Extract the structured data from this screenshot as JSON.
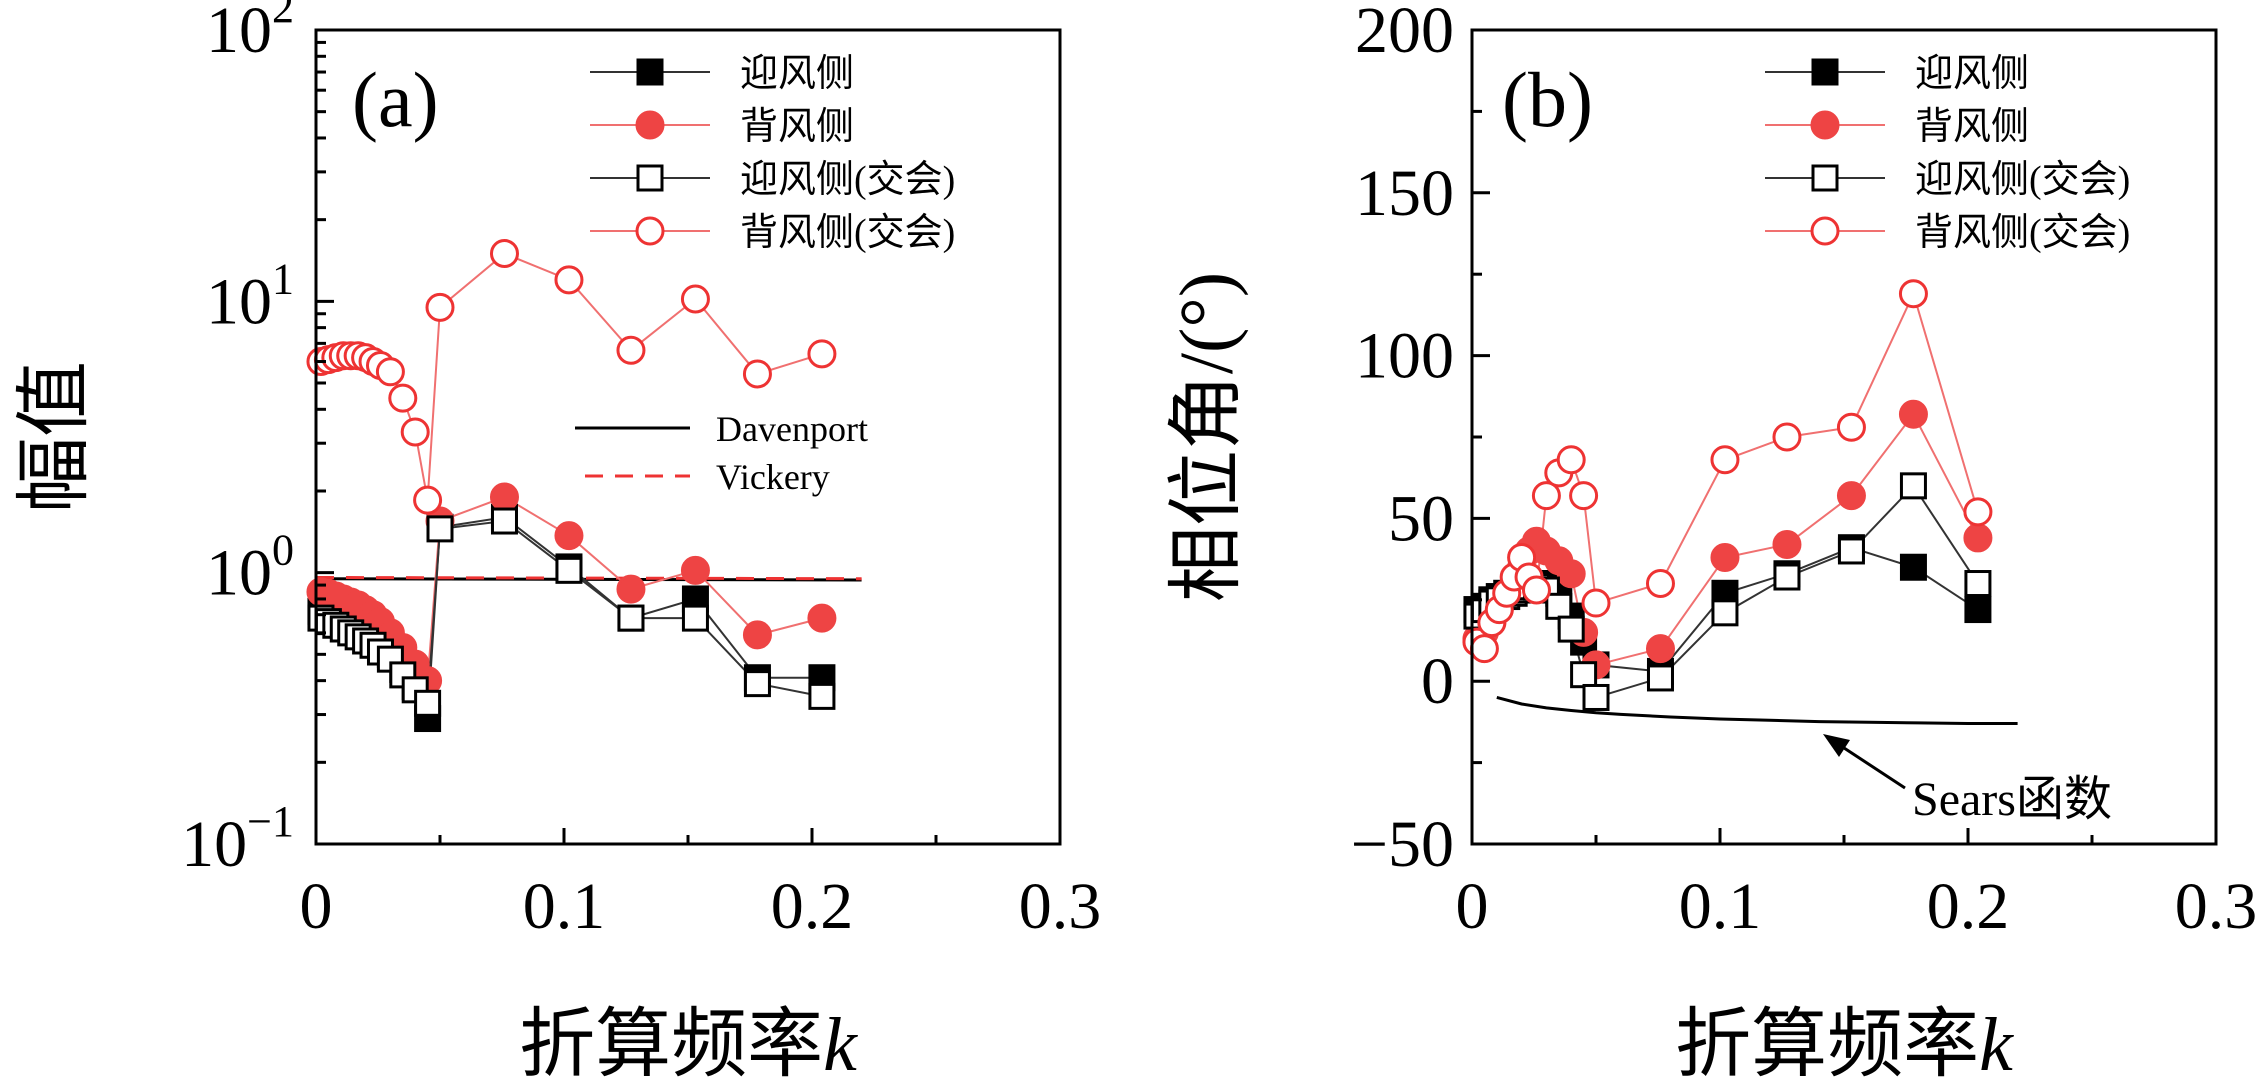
{
  "chart_data": [
    {
      "panel_label": "(a)",
      "type": "scatter",
      "xscale": "linear",
      "yscale": "log",
      "xlim": [
        0,
        0.3
      ],
      "ylim": [
        0.1,
        100
      ],
      "xlabel_main": "折算频率",
      "xlabel_var": "k",
      "ylabel": "幅值",
      "xticks": [
        "0",
        "0.1",
        "0.2",
        "0.3"
      ],
      "xtick_values": [
        0,
        0.1,
        0.2,
        0.3
      ],
      "yticks": [
        {
          "value": 0.1,
          "base": "10",
          "exp": "−1"
        },
        {
          "value": 1,
          "base": "10",
          "exp": "0"
        },
        {
          "value": 10,
          "base": "10",
          "exp": "1"
        },
        {
          "value": 100,
          "base": "10",
          "exp": "2"
        }
      ],
      "legend_position": "top-right",
      "series": [
        {
          "name": "迎风侧",
          "style": "black-filled-square",
          "x": [
            0.002,
            0.005,
            0.008,
            0.011,
            0.014,
            0.017,
            0.02,
            0.023,
            0.026,
            0.03,
            0.035,
            0.04,
            0.045,
            0.05,
            0.076,
            0.102,
            0.127,
            0.153,
            0.178,
            0.204
          ],
          "y": [
            0.72,
            0.7,
            0.67,
            0.65,
            0.63,
            0.61,
            0.59,
            0.57,
            0.54,
            0.5,
            0.44,
            0.38,
            0.29,
            1.47,
            1.6,
            1.05,
            0.68,
            0.8,
            0.41,
            0.41
          ]
        },
        {
          "name": "背风侧",
          "style": "red-filled-circle",
          "x": [
            0.002,
            0.005,
            0.008,
            0.011,
            0.014,
            0.017,
            0.02,
            0.023,
            0.026,
            0.03,
            0.035,
            0.04,
            0.045,
            0.05,
            0.076,
            0.102,
            0.127,
            0.153,
            0.178,
            0.204
          ],
          "y": [
            0.85,
            0.84,
            0.82,
            0.8,
            0.78,
            0.76,
            0.73,
            0.7,
            0.66,
            0.6,
            0.53,
            0.46,
            0.4,
            1.55,
            1.9,
            1.37,
            0.87,
            1.02,
            0.59,
            0.68
          ]
        },
        {
          "name": "迎风侧(交会)",
          "style": "black-open-square",
          "x": [
            0.002,
            0.005,
            0.008,
            0.011,
            0.014,
            0.017,
            0.02,
            0.023,
            0.026,
            0.03,
            0.035,
            0.04,
            0.045,
            0.05,
            0.076,
            0.102,
            0.127,
            0.153,
            0.178,
            0.204
          ],
          "y": [
            0.68,
            0.66,
            0.64,
            0.62,
            0.6,
            0.58,
            0.56,
            0.54,
            0.51,
            0.48,
            0.42,
            0.37,
            0.33,
            1.45,
            1.55,
            1.02,
            0.68,
            0.68,
            0.39,
            0.35
          ]
        },
        {
          "name": "背风侧(交会)",
          "style": "red-open-circle",
          "x": [
            0.002,
            0.005,
            0.008,
            0.011,
            0.014,
            0.017,
            0.02,
            0.023,
            0.026,
            0.03,
            0.035,
            0.04,
            0.045,
            0.05,
            0.076,
            0.102,
            0.127,
            0.153,
            0.178,
            0.204
          ],
          "y": [
            6.0,
            6.1,
            6.2,
            6.3,
            6.3,
            6.3,
            6.2,
            6.0,
            5.8,
            5.5,
            4.4,
            3.3,
            1.85,
            9.5,
            15.0,
            12.0,
            6.6,
            10.2,
            5.4,
            6.4
          ]
        }
      ],
      "reference_lines": [
        {
          "name": "Davenport",
          "style": "black-solid",
          "x": [
            0,
            0.22
          ],
          "y": [
            0.95,
            0.94
          ]
        },
        {
          "name": "Vickery",
          "style": "red-dashed",
          "x": [
            0,
            0.22
          ],
          "y": [
            0.96,
            0.95
          ]
        }
      ]
    },
    {
      "panel_label": "(b)",
      "type": "scatter",
      "xscale": "linear",
      "yscale": "linear",
      "xlim": [
        0,
        0.3
      ],
      "ylim": [
        -50,
        200
      ],
      "xlabel_main": "折算频率",
      "xlabel_var": "k",
      "ylabel": "相位角/(°)",
      "xticks": [
        "0",
        "0.1",
        "0.2",
        "0.3"
      ],
      "xtick_values": [
        0,
        0.1,
        0.2,
        0.3
      ],
      "yticks": [
        "−50",
        "0",
        "50",
        "100",
        "150",
        "200"
      ],
      "ytick_values": [
        -50,
        0,
        50,
        100,
        150,
        200
      ],
      "legend_position": "top-right",
      "annotation": "Sears函数",
      "series": [
        {
          "name": "迎风侧",
          "style": "black-filled-square",
          "x": [
            0.002,
            0.005,
            0.008,
            0.011,
            0.014,
            0.017,
            0.02,
            0.023,
            0.026,
            0.03,
            0.035,
            0.04,
            0.045,
            0.05,
            0.076,
            0.102,
            0.127,
            0.153,
            0.178,
            0.204
          ],
          "y": [
            22,
            23,
            25,
            26,
            27,
            28,
            28,
            29,
            30,
            30,
            27,
            20,
            12,
            5,
            3,
            27,
            33,
            41,
            35,
            22
          ]
        },
        {
          "name": "背风侧",
          "style": "red-filled-circle",
          "x": [
            0.002,
            0.005,
            0.008,
            0.011,
            0.014,
            0.017,
            0.02,
            0.023,
            0.026,
            0.03,
            0.035,
            0.04,
            0.045,
            0.05,
            0.076,
            0.102,
            0.127,
            0.153,
            0.178,
            0.204
          ],
          "y": [
            13,
            15,
            18,
            22,
            26,
            30,
            35,
            40,
            43,
            40,
            37,
            33,
            15,
            5,
            10,
            38,
            42,
            57,
            82,
            44
          ]
        },
        {
          "name": "迎风侧(交会)",
          "style": "black-open-square",
          "x": [
            0.002,
            0.005,
            0.008,
            0.011,
            0.014,
            0.017,
            0.02,
            0.023,
            0.026,
            0.03,
            0.035,
            0.04,
            0.045,
            0.05,
            0.076,
            0.102,
            0.127,
            0.153,
            0.178,
            0.204
          ],
          "y": [
            20,
            22,
            24,
            25,
            26,
            27,
            28,
            29,
            29,
            28,
            23,
            16,
            2,
            -5,
            1,
            21,
            32,
            40,
            60,
            30
          ]
        },
        {
          "name": "背风侧(交会)",
          "style": "red-open-circle",
          "x": [
            0.002,
            0.005,
            0.008,
            0.011,
            0.014,
            0.017,
            0.02,
            0.023,
            0.026,
            0.03,
            0.035,
            0.04,
            0.045,
            0.05,
            0.076,
            0.102,
            0.127,
            0.153,
            0.178,
            0.204
          ],
          "y": [
            12,
            10,
            18,
            22,
            27,
            32,
            38,
            32,
            28,
            57,
            64,
            68,
            57,
            24,
            30,
            68,
            75,
            78,
            119,
            52
          ]
        }
      ],
      "reference_lines": [
        {
          "name": "Sears函数",
          "style": "black-solid",
          "x": [
            0.01,
            0.02,
            0.03,
            0.04,
            0.05,
            0.06,
            0.08,
            0.1,
            0.12,
            0.14,
            0.16,
            0.18,
            0.2,
            0.22
          ],
          "y": [
            -5,
            -7,
            -8.2,
            -9,
            -9.7,
            -10.2,
            -11,
            -11.6,
            -12,
            -12.4,
            -12.6,
            -12.8,
            -13,
            -13
          ]
        }
      ]
    }
  ],
  "legend_entries": [
    "迎风侧",
    "背风侧",
    "迎风侧(交会)",
    "背风侧(交会)"
  ],
  "colors": {
    "black": "#000000",
    "red": "#ee3333",
    "red_fill": "#ee4444",
    "red_line": "#f07070"
  }
}
